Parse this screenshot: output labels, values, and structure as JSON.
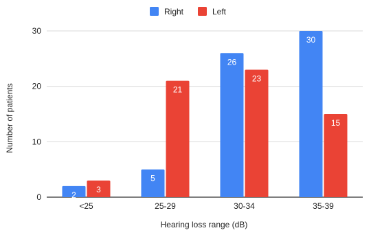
{
  "chart_data": {
    "type": "bar",
    "categories": [
      "<25",
      "25-29",
      "30-34",
      "35-39"
    ],
    "series": [
      {
        "name": "Right",
        "values": [
          2,
          5,
          26,
          30
        ],
        "color": "#4285F4"
      },
      {
        "name": "Left",
        "values": [
          3,
          21,
          23,
          15
        ],
        "color": "#EA4335"
      }
    ],
    "xlabel": "Hearing loss range (dB)",
    "ylabel": "Number of patients",
    "ylim": [
      0,
      30
    ],
    "yticks": [
      0,
      10,
      20,
      30
    ],
    "grid": true,
    "legend_position": "top-center",
    "data_labels": true
  }
}
